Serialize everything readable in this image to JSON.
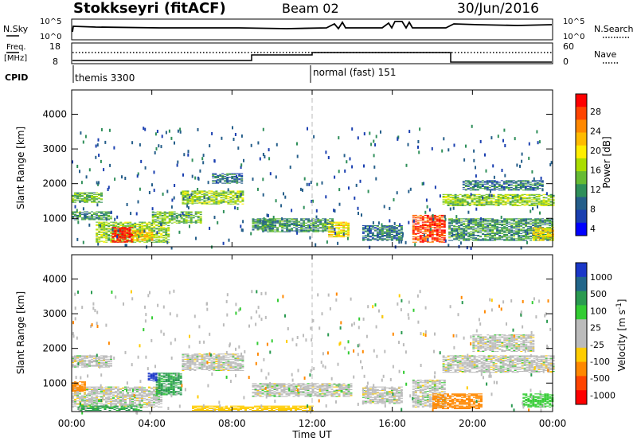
{
  "header": {
    "radar": "Stokkseyri (fitACF)",
    "beam": "Beam 02",
    "date": "30/Jun/2016"
  },
  "nsky_panel": {
    "left_label": "N.Sky",
    "right_label": "N.Search",
    "left_ticks": [
      "10^5",
      "10^0"
    ],
    "right_ticks": [
      "10^5",
      "10^0"
    ]
  },
  "freq_panel": {
    "left_label_1": "Freq.",
    "left_label_2": "[MHz]",
    "right_label": "Nave",
    "left_ticks": [
      "18",
      "8"
    ],
    "right_ticks": [
      "60",
      "0"
    ]
  },
  "cpid": {
    "label": "CPID",
    "modes": [
      "themis 3300",
      "normal (fast) 151"
    ]
  },
  "power_colorbar": {
    "label": "Power [dB]",
    "ticks": [
      "28",
      "24",
      "20",
      "16",
      "12",
      "8",
      "4"
    ],
    "colors": [
      "#ff0000",
      "#ff4400",
      "#ff8800",
      "#ffbb00",
      "#ffee00",
      "#aadd00",
      "#66bb33",
      "#2f8f5a",
      "#255e8a",
      "#1a3fb0",
      "#0000ff"
    ]
  },
  "velocity_colorbar": {
    "label": "Velocity [m s^-1]",
    "ticks": [
      "1000",
      "500",
      "100",
      "25",
      "-25",
      "-100",
      "-500",
      "-1000"
    ],
    "colors": [
      "#1a37c8",
      "#22668a",
      "#2a9a50",
      "#33cc33",
      "#bbbbbb",
      "#bbbbbb",
      "#ffcc00",
      "#ff8800",
      "#ff4400",
      "#ff0000"
    ]
  },
  "chart_data": [
    {
      "type": "heatmap",
      "title": "Power",
      "ylabel": "Slant Range [km]",
      "xlabel": "Time UT",
      "x_ticks": [
        "00:00",
        "04:00",
        "08:00",
        "12:00",
        "16:00",
        "20:00",
        "00:00"
      ],
      "y_ticks": [
        1000,
        2000,
        3000,
        4000
      ],
      "ylim": [
        180,
        4700
      ],
      "xlim_hours": [
        0,
        24
      ],
      "regions": [
        {
          "t0": 0.0,
          "t1": 1.5,
          "r0": 1450,
          "r1": 1750,
          "level_db": 12
        },
        {
          "t0": 0.0,
          "t1": 2.0,
          "r0": 950,
          "r1": 1200,
          "level_db": 10
        },
        {
          "t0": 1.2,
          "t1": 4.8,
          "r0": 300,
          "r1": 900,
          "level_db": 14
        },
        {
          "t0": 2.0,
          "t1": 3.0,
          "r0": 300,
          "r1": 750,
          "level_db": 28
        },
        {
          "t0": 3.0,
          "t1": 4.0,
          "r0": 350,
          "r1": 650,
          "level_db": 20
        },
        {
          "t0": 4.0,
          "t1": 6.5,
          "r0": 850,
          "r1": 1200,
          "level_db": 12
        },
        {
          "t0": 5.5,
          "t1": 8.5,
          "r0": 1400,
          "r1": 1800,
          "level_db": 14
        },
        {
          "t0": 7.0,
          "t1": 8.5,
          "r0": 2000,
          "r1": 2300,
          "level_db": 8
        },
        {
          "t0": 9.0,
          "t1": 10.0,
          "r0": 650,
          "r1": 1000,
          "level_db": 10
        },
        {
          "t0": 9.5,
          "t1": 13.0,
          "r0": 600,
          "r1": 1000,
          "level_db": 10
        },
        {
          "t0": 12.8,
          "t1": 13.8,
          "r0": 450,
          "r1": 900,
          "level_db": 18
        },
        {
          "t0": 14.5,
          "t1": 16.5,
          "r0": 350,
          "r1": 800,
          "level_db": 8
        },
        {
          "t0": 17.0,
          "t1": 18.6,
          "r0": 300,
          "r1": 1100,
          "level_db": 26
        },
        {
          "t0": 18.5,
          "t1": 24.0,
          "r0": 1350,
          "r1": 1700,
          "level_db": 14
        },
        {
          "t0": 19.5,
          "t1": 23.5,
          "r0": 1800,
          "r1": 2100,
          "level_db": 8
        },
        {
          "t0": 18.8,
          "t1": 24.0,
          "r0": 350,
          "r1": 1000,
          "level_db": 10
        },
        {
          "t0": 23.0,
          "t1": 24.0,
          "r0": 350,
          "r1": 750,
          "level_db": 18
        }
      ]
    },
    {
      "type": "heatmap",
      "title": "Velocity",
      "ylabel": "Slant Range [km]",
      "xlabel": "Time UT",
      "x_ticks": [
        "00:00",
        "04:00",
        "08:00",
        "12:00",
        "16:00",
        "20:00",
        "00:00"
      ],
      "y_ticks": [
        1000,
        2000,
        3000,
        4000
      ],
      "ylim": [
        180,
        4700
      ],
      "xlim_hours": [
        0,
        24
      ],
      "regions": [
        {
          "t0": 0.0,
          "t1": 2.0,
          "r0": 1450,
          "r1": 1800,
          "velocity": 0
        },
        {
          "t0": 0.0,
          "t1": 4.5,
          "r0": 300,
          "r1": 900,
          "velocity": 0
        },
        {
          "t0": 0.0,
          "t1": 0.6,
          "r0": 750,
          "r1": 1050,
          "velocity": -300
        },
        {
          "t0": 0.3,
          "t1": 3.5,
          "r0": 200,
          "r1": 350,
          "velocity": 120
        },
        {
          "t0": 4.2,
          "t1": 5.5,
          "r0": 650,
          "r1": 1300,
          "velocity": 120
        },
        {
          "t0": 3.8,
          "t1": 4.2,
          "r0": 1050,
          "r1": 1300,
          "velocity": 800
        },
        {
          "t0": 5.5,
          "t1": 8.5,
          "r0": 1350,
          "r1": 1850,
          "velocity": 0
        },
        {
          "t0": 9.0,
          "t1": 14.0,
          "r0": 600,
          "r1": 1000,
          "velocity": 0
        },
        {
          "t0": 6.0,
          "t1": 12.0,
          "r0": 200,
          "r1": 350,
          "velocity": -60
        },
        {
          "t0": 14.5,
          "t1": 16.5,
          "r0": 400,
          "r1": 900,
          "velocity": 0
        },
        {
          "t0": 17.0,
          "t1": 18.6,
          "r0": 300,
          "r1": 1100,
          "velocity": 0
        },
        {
          "t0": 18.0,
          "t1": 20.5,
          "r0": 250,
          "r1": 700,
          "velocity": -250
        },
        {
          "t0": 18.5,
          "t1": 24.0,
          "r0": 1300,
          "r1": 1800,
          "velocity": 0
        },
        {
          "t0": 20.0,
          "t1": 23.0,
          "r0": 1900,
          "r1": 2400,
          "velocity": 0
        },
        {
          "t0": 22.5,
          "t1": 24.0,
          "r0": 300,
          "r1": 700,
          "velocity": 60
        }
      ]
    }
  ]
}
